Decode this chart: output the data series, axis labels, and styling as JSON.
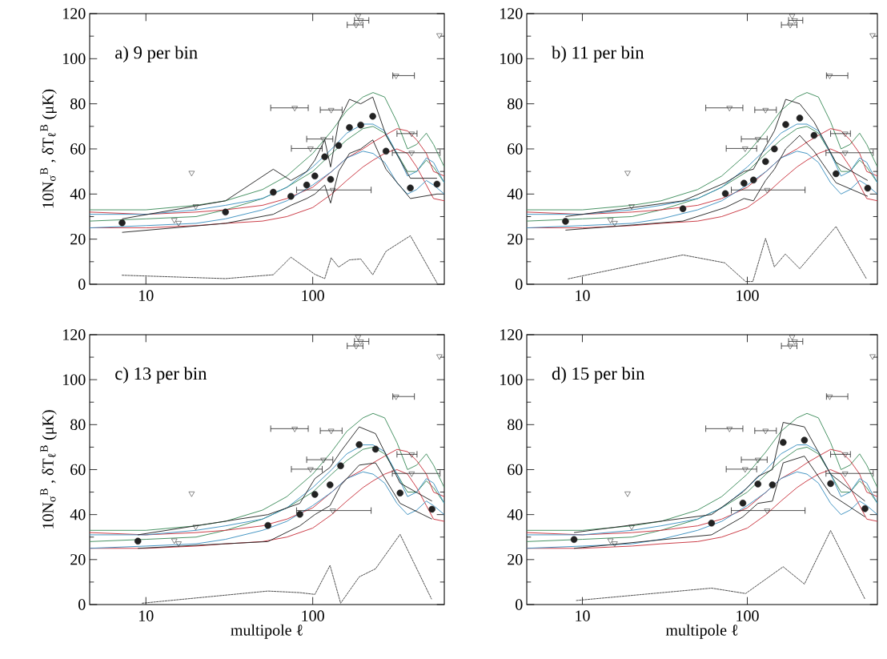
{
  "chart_data": [
    {
      "type": "line",
      "title": "a) 9 per bin",
      "ylabel": "10N$_{σ}$$^{B}$ ,  δT$_{ℓ}$$^{B}$ (μK)",
      "log": "x",
      "xlim": [
        4.6,
        615
      ],
      "ylim": [
        0,
        120
      ],
      "xticks": [
        10,
        100
      ],
      "yticks": [
        0,
        20,
        40,
        60,
        80,
        100,
        120
      ],
      "series": [
        {
          "color": "#3c8c5a",
          "x": [
            4.6,
            10,
            20,
            30,
            50,
            70,
            100,
            130,
            160,
            200,
            230,
            270,
            320,
            370,
            420,
            480,
            530,
            615
          ],
          "values": [
            33,
            33,
            35,
            37,
            42,
            48,
            58,
            68,
            77,
            83,
            85,
            83,
            72,
            60,
            62,
            67,
            62,
            52
          ]
        },
        {
          "color": "#3c8c5a",
          "x": [
            4.6,
            10,
            20,
            30,
            50,
            70,
            100,
            130,
            160,
            200,
            230,
            270,
            320,
            370,
            420,
            480,
            530,
            615
          ],
          "values": [
            28,
            29,
            30,
            33,
            38,
            43,
            50,
            58,
            64,
            69,
            70,
            67,
            58,
            50,
            50,
            55,
            52,
            45
          ]
        },
        {
          "color": "#c8323c",
          "x": [
            4.6,
            10,
            20,
            30,
            50,
            70,
            100,
            130,
            160,
            200,
            230,
            270,
            320,
            370,
            420,
            480,
            530,
            615
          ],
          "values": [
            32,
            31,
            32,
            33,
            35,
            38,
            43,
            50,
            56,
            60,
            63,
            66,
            69,
            68,
            64,
            58,
            50,
            48
          ]
        },
        {
          "color": "#c8323c",
          "x": [
            4.6,
            10,
            20,
            30,
            50,
            70,
            100,
            130,
            160,
            200,
            230,
            270,
            320,
            370,
            420,
            480,
            530,
            615
          ],
          "values": [
            25,
            25,
            26,
            27,
            28,
            30,
            34,
            40,
            46,
            52,
            55,
            58,
            60,
            58,
            52,
            44,
            38,
            37
          ]
        },
        {
          "color": "#3a8fc0",
          "x": [
            4.6,
            10,
            20,
            30,
            50,
            70,
            100,
            130,
            160,
            200,
            230,
            270,
            320,
            370,
            420,
            480,
            530,
            615
          ],
          "values": [
            31,
            31,
            33,
            35,
            38,
            43,
            52,
            60,
            67,
            71,
            71,
            68,
            58,
            48,
            50,
            56,
            54,
            45
          ]
        },
        {
          "color": "#3a8fc0",
          "x": [
            4.6,
            10,
            20,
            30,
            50,
            70,
            100,
            130,
            160,
            200,
            230,
            270,
            320,
            370,
            420,
            480,
            530,
            615
          ],
          "values": [
            25,
            26,
            27,
            29,
            33,
            37,
            44,
            50,
            56,
            59,
            58,
            54,
            45,
            40,
            42,
            46,
            44,
            40
          ]
        },
        {
          "type": "scatter",
          "marker": "circle",
          "color": "#222222",
          "x": [
            7.2,
            30,
            58,
            74,
            92,
            103,
            118,
            128,
            143,
            166,
            194,
            229,
            275,
            385,
            556
          ],
          "values": [
            27.2,
            32,
            40.8,
            39,
            44,
            48,
            56.5,
            46.5,
            61.5,
            69.5,
            70.6,
            74.5,
            59,
            42.7,
            44.4
          ]
        },
        {
          "color": "#222222",
          "x": [
            7.2,
            30,
            58,
            74,
            92,
            103,
            118,
            128,
            143,
            166,
            194,
            229,
            275,
            385,
            556
          ],
          "values": [
            29,
            37,
            51,
            46,
            50,
            55,
            64,
            52,
            72,
            82,
            80,
            83,
            66,
            47,
            47
          ]
        },
        {
          "color": "#222222",
          "x": [
            7.2,
            30,
            58,
            74,
            92,
            103,
            118,
            128,
            143,
            166,
            194,
            229,
            275,
            385,
            556
          ],
          "values": [
            23,
            27,
            31,
            35,
            38,
            40,
            44,
            36,
            50,
            58,
            60,
            64,
            51,
            38,
            40
          ]
        },
        {
          "type": "scatter",
          "marker": "triangle",
          "color": "#222222",
          "x": [
            14.8,
            15.7,
            18.8,
            19.9,
            78,
            97,
            116,
            129,
            132,
            182,
            187,
            194,
            316,
            392,
            392,
            575
          ],
          "values": [
            28.5,
            27.2,
            49.4,
            34.6,
            78.2,
            60.2,
            64.4,
            77.3,
            41.8,
            115,
            119,
            117,
            92.5,
            58.3,
            66.8,
            110.4
          ],
          "xerrors": [
            null,
            null,
            null,
            null,
            [
              56,
              94
            ],
            [
              74.5,
              114
            ],
            [
              92,
              132
            ],
            [
              111,
              150
            ],
            [
              80,
              224
            ],
            [
              161,
              200
            ],
            null,
            [
              178,
              217
            ],
            [
              302,
              407
            ],
            [
              300,
              580
            ],
            [
              320,
              422
            ],
            null
          ]
        },
        {
          "line_style": "dashed",
          "color": "#222222",
          "x": [
            7.2,
            30,
            58,
            74,
            103,
            118,
            129,
            143,
            166,
            194,
            229,
            275,
            385,
            556
          ],
          "values": [
            4,
            2.5,
            4.2,
            12,
            4.4,
            2.5,
            11.7,
            7.6,
            10.8,
            11.2,
            4.2,
            14.6,
            21.5,
            0.6
          ]
        }
      ]
    },
    {
      "type": "line",
      "title": "b) 11 per bin",
      "log": "x",
      "xlim": [
        4.6,
        615
      ],
      "ylim": [
        0,
        120
      ],
      "xticks": [
        10,
        100
      ],
      "yticks": [
        0,
        20,
        40,
        60,
        80,
        100,
        120
      ],
      "series": [
        {
          "color": "#3c8c5a",
          "x": [
            4.6,
            10,
            20,
            30,
            50,
            70,
            100,
            130,
            160,
            200,
            230,
            270,
            320,
            370,
            420,
            480,
            530,
            615
          ],
          "values": [
            33,
            33,
            35,
            37,
            42,
            48,
            58,
            68,
            77,
            83,
            85,
            83,
            72,
            60,
            62,
            67,
            62,
            52
          ]
        },
        {
          "color": "#3c8c5a",
          "x": [
            4.6,
            10,
            20,
            30,
            50,
            70,
            100,
            130,
            160,
            200,
            230,
            270,
            320,
            370,
            420,
            480,
            530,
            615
          ],
          "values": [
            28,
            29,
            30,
            33,
            38,
            43,
            50,
            58,
            64,
            69,
            70,
            67,
            58,
            50,
            50,
            55,
            52,
            45
          ]
        },
        {
          "color": "#c8323c",
          "x": [
            4.6,
            10,
            20,
            30,
            50,
            70,
            100,
            130,
            160,
            200,
            230,
            270,
            320,
            370,
            420,
            480,
            530,
            615
          ],
          "values": [
            32,
            31,
            32,
            33,
            35,
            38,
            43,
            50,
            56,
            60,
            63,
            66,
            69,
            68,
            64,
            58,
            50,
            48
          ]
        },
        {
          "color": "#c8323c",
          "x": [
            4.6,
            10,
            20,
            30,
            50,
            70,
            100,
            130,
            160,
            200,
            230,
            270,
            320,
            370,
            420,
            480,
            530,
            615
          ],
          "values": [
            25,
            25,
            26,
            27,
            28,
            30,
            34,
            40,
            46,
            52,
            55,
            58,
            60,
            58,
            52,
            44,
            38,
            37
          ]
        },
        {
          "color": "#3a8fc0",
          "x": [
            4.6,
            10,
            20,
            30,
            50,
            70,
            100,
            130,
            160,
            200,
            230,
            270,
            320,
            370,
            420,
            480,
            530,
            615
          ],
          "values": [
            31,
            31,
            33,
            35,
            38,
            43,
            52,
            60,
            67,
            71,
            71,
            68,
            58,
            48,
            50,
            56,
            54,
            45
          ]
        },
        {
          "color": "#3a8fc0",
          "x": [
            4.6,
            10,
            20,
            30,
            50,
            70,
            100,
            130,
            160,
            200,
            230,
            270,
            320,
            370,
            420,
            480,
            530,
            615
          ],
          "values": [
            25,
            26,
            27,
            29,
            33,
            37,
            44,
            50,
            56,
            59,
            58,
            54,
            45,
            40,
            42,
            46,
            44,
            40
          ]
        },
        {
          "type": "scatter",
          "marker": "circle",
          "color": "#222222",
          "x": [
            7.9,
            40.7,
            73.6,
            95.5,
            109,
            129,
            146,
            171,
            208,
            254,
            345,
            537
          ],
          "values": [
            27.9,
            33.5,
            40.2,
            44.8,
            46.2,
            54.4,
            60,
            70.8,
            73.7,
            66,
            49,
            42.6
          ]
        },
        {
          "color": "#222222",
          "x": [
            7.9,
            40.7,
            73.6,
            95.5,
            109,
            129,
            146,
            171,
            208,
            254,
            345,
            537
          ],
          "values": [
            30,
            37,
            45,
            50,
            51,
            61,
            68,
            82,
            80,
            72,
            54,
            46
          ]
        },
        {
          "color": "#222222",
          "x": [
            7.9,
            40.7,
            73.6,
            95.5,
            109,
            129,
            146,
            171,
            208,
            254,
            345,
            537
          ],
          "values": [
            24,
            28,
            34,
            38,
            37,
            46,
            51,
            60,
            66,
            59,
            45,
            39
          ]
        },
        {
          "type": "scatter",
          "marker": "triangle",
          "color": "#222222",
          "x": [
            14.8,
            15.7,
            18.8,
            19.9,
            78,
            97,
            116,
            129,
            132,
            182,
            187,
            194,
            316,
            392,
            392,
            575
          ],
          "values": [
            28.5,
            27.2,
            49.4,
            34.6,
            78.2,
            60.2,
            64.4,
            77.3,
            41.8,
            115,
            119,
            117,
            92.5,
            58.3,
            66.8,
            110.4
          ],
          "xerrors": [
            null,
            null,
            null,
            null,
            [
              56,
              94
            ],
            [
              74.5,
              114
            ],
            [
              92,
              132
            ],
            [
              111,
              150
            ],
            [
              80,
              224
            ],
            [
              161,
              200
            ],
            null,
            [
              178,
              217
            ],
            [
              302,
              407
            ],
            [
              300,
              580
            ],
            [
              320,
              422
            ],
            null
          ]
        },
        {
          "line_style": "dashed",
          "color": "#222222",
          "x": [
            8.2,
            40.7,
            73,
            97.7,
            108,
            129,
            146,
            170,
            208,
            345,
            528
          ],
          "values": [
            2.4,
            13,
            9.5,
            1.2,
            1.2,
            20.3,
            7.7,
            13.4,
            6.9,
            25.6,
            2.4
          ]
        }
      ]
    },
    {
      "type": "line",
      "title": "c) 13 per bin",
      "xlabel": "multipole ℓ",
      "ylabel": "10N$_{σ}$$^{B}$ ,  δT$_{ℓ}$$^{B}$ (μK)",
      "log": "x",
      "xlim": [
        4.6,
        615
      ],
      "ylim": [
        0,
        120
      ],
      "xticks": [
        10,
        100
      ],
      "yticks": [
        0,
        20,
        40,
        60,
        80,
        100,
        120
      ],
      "series": [
        {
          "color": "#3c8c5a",
          "x": [
            4.6,
            10,
            20,
            30,
            50,
            70,
            100,
            130,
            160,
            200,
            230,
            270,
            320,
            370,
            420,
            480,
            530,
            615
          ],
          "values": [
            33,
            33,
            35,
            37,
            42,
            48,
            58,
            68,
            77,
            83,
            85,
            83,
            72,
            60,
            62,
            67,
            62,
            52
          ]
        },
        {
          "color": "#3c8c5a",
          "x": [
            4.6,
            10,
            20,
            30,
            50,
            70,
            100,
            130,
            160,
            200,
            230,
            270,
            320,
            370,
            420,
            480,
            530,
            615
          ],
          "values": [
            28,
            29,
            30,
            33,
            38,
            43,
            50,
            58,
            64,
            69,
            70,
            67,
            58,
            50,
            50,
            55,
            52,
            45
          ]
        },
        {
          "color": "#c8323c",
          "x": [
            4.6,
            10,
            20,
            30,
            50,
            70,
            100,
            130,
            160,
            200,
            230,
            270,
            320,
            370,
            420,
            480,
            530,
            615
          ],
          "values": [
            32,
            31,
            32,
            33,
            35,
            38,
            43,
            50,
            56,
            60,
            63,
            66,
            69,
            68,
            64,
            58,
            50,
            48
          ]
        },
        {
          "color": "#c8323c",
          "x": [
            4.6,
            10,
            20,
            30,
            50,
            70,
            100,
            130,
            160,
            200,
            230,
            270,
            320,
            370,
            420,
            480,
            530,
            615
          ],
          "values": [
            25,
            25,
            26,
            27,
            28,
            30,
            34,
            40,
            46,
            52,
            55,
            58,
            60,
            58,
            52,
            44,
            38,
            37
          ]
        },
        {
          "color": "#3a8fc0",
          "x": [
            4.6,
            10,
            20,
            30,
            50,
            70,
            100,
            130,
            160,
            200,
            230,
            270,
            320,
            370,
            420,
            480,
            530,
            615
          ],
          "values": [
            31,
            31,
            33,
            35,
            38,
            43,
            52,
            60,
            67,
            71,
            71,
            68,
            58,
            48,
            50,
            56,
            54,
            45
          ]
        },
        {
          "color": "#3a8fc0",
          "x": [
            4.6,
            10,
            20,
            30,
            50,
            70,
            100,
            130,
            160,
            200,
            230,
            270,
            320,
            370,
            420,
            480,
            530,
            615
          ],
          "values": [
            25,
            26,
            27,
            29,
            33,
            37,
            44,
            50,
            56,
            59,
            58,
            54,
            45,
            40,
            42,
            46,
            44,
            40
          ]
        },
        {
          "type": "scatter",
          "marker": "circle",
          "color": "#222222",
          "x": [
            8.95,
            53.9,
            83.7,
            103,
            127,
            147,
            190,
            238,
            334,
            519
          ],
          "values": [
            28.2,
            35.2,
            40.1,
            49,
            53.2,
            61.7,
            71.1,
            69.1,
            49.6,
            42.4
          ]
        },
        {
          "color": "#222222",
          "x": [
            8.95,
            53.9,
            83.7,
            103,
            127,
            147,
            190,
            238,
            334,
            519
          ],
          "values": [
            31,
            40,
            45,
            56,
            61,
            68,
            79,
            76,
            54,
            46
          ]
        },
        {
          "color": "#222222",
          "x": [
            8.95,
            53.9,
            83.7,
            103,
            127,
            147,
            190,
            238,
            334,
            519
          ],
          "values": [
            25,
            28,
            35,
            40,
            44,
            53,
            62,
            63,
            45,
            38
          ]
        },
        {
          "type": "scatter",
          "marker": "triangle",
          "color": "#222222",
          "x": [
            14.8,
            15.7,
            18.8,
            19.9,
            78,
            97,
            116,
            129,
            132,
            182,
            187,
            194,
            316,
            392,
            392,
            575
          ],
          "values": [
            28.5,
            27.2,
            49.4,
            34.6,
            78.2,
            60.2,
            64.4,
            77.3,
            41.8,
            115,
            119,
            117,
            92.5,
            58.3,
            66.8,
            110.4
          ],
          "xerrors": [
            null,
            null,
            null,
            null,
            [
              56,
              94
            ],
            [
              74.5,
              114
            ],
            [
              92,
              132
            ],
            [
              111,
              150
            ],
            [
              80,
              224
            ],
            [
              161,
              200
            ],
            null,
            [
              178,
              217
            ],
            [
              302,
              407
            ],
            [
              300,
              580
            ],
            [
              320,
              422
            ],
            null
          ]
        },
        {
          "line_style": "dashed",
          "color": "#222222",
          "x": [
            9.5,
            53.9,
            83.7,
            103,
            127,
            147,
            190,
            238,
            334,
            515
          ],
          "values": [
            0.6,
            6,
            5.3,
            4.5,
            17.4,
            0.6,
            12.3,
            15.9,
            31.2,
            2.5
          ]
        }
      ]
    },
    {
      "type": "line",
      "title": "d) 15 per bin",
      "xlabel": "multipole ℓ",
      "log": "x",
      "xlim": [
        4.6,
        615
      ],
      "ylim": [
        0,
        120
      ],
      "xticks": [
        10,
        100
      ],
      "yticks": [
        0,
        20,
        40,
        60,
        80,
        100,
        120
      ],
      "series": [
        {
          "color": "#3c8c5a",
          "x": [
            4.6,
            10,
            20,
            30,
            50,
            70,
            100,
            130,
            160,
            200,
            230,
            270,
            320,
            370,
            420,
            480,
            530,
            615
          ],
          "values": [
            33,
            33,
            35,
            37,
            42,
            48,
            58,
            68,
            77,
            83,
            85,
            83,
            72,
            60,
            62,
            67,
            62,
            52
          ]
        },
        {
          "color": "#3c8c5a",
          "x": [
            4.6,
            10,
            20,
            30,
            50,
            70,
            100,
            130,
            160,
            200,
            230,
            270,
            320,
            370,
            420,
            480,
            530,
            615
          ],
          "values": [
            28,
            29,
            30,
            33,
            38,
            43,
            50,
            58,
            64,
            69,
            70,
            67,
            58,
            50,
            50,
            55,
            52,
            45
          ]
        },
        {
          "color": "#c8323c",
          "x": [
            4.6,
            10,
            20,
            30,
            50,
            70,
            100,
            130,
            160,
            200,
            230,
            270,
            320,
            370,
            420,
            480,
            530,
            615
          ],
          "values": [
            32,
            31,
            32,
            33,
            35,
            38,
            43,
            50,
            56,
            60,
            63,
            66,
            69,
            68,
            64,
            58,
            50,
            48
          ]
        },
        {
          "color": "#c8323c",
          "x": [
            4.6,
            10,
            20,
            30,
            50,
            70,
            100,
            130,
            160,
            200,
            230,
            270,
            320,
            370,
            420,
            480,
            530,
            615
          ],
          "values": [
            25,
            25,
            26,
            27,
            28,
            30,
            34,
            40,
            46,
            52,
            55,
            58,
            60,
            58,
            52,
            44,
            38,
            37
          ]
        },
        {
          "color": "#3a8fc0",
          "x": [
            4.6,
            10,
            20,
            30,
            50,
            70,
            100,
            130,
            160,
            200,
            230,
            270,
            320,
            370,
            420,
            480,
            530,
            615
          ],
          "values": [
            31,
            31,
            33,
            35,
            38,
            43,
            52,
            60,
            67,
            71,
            71,
            68,
            58,
            48,
            50,
            56,
            54,
            45
          ]
        },
        {
          "color": "#3a8fc0",
          "x": [
            4.6,
            10,
            20,
            30,
            50,
            70,
            100,
            130,
            160,
            200,
            230,
            270,
            320,
            370,
            420,
            480,
            530,
            615
          ],
          "values": [
            25,
            26,
            27,
            29,
            33,
            37,
            44,
            50,
            56,
            59,
            58,
            54,
            45,
            40,
            42,
            46,
            44,
            40
          ]
        },
        {
          "type": "scatter",
          "marker": "circle",
          "color": "#222222",
          "x": [
            8.9,
            60.7,
            94,
            116,
            142,
            165,
            222,
            320,
            517
          ],
          "values": [
            28.9,
            36.2,
            45.1,
            53.6,
            53.2,
            72.1,
            73.1,
            53.8,
            42.6
          ]
        },
        {
          "color": "#222222",
          "x": [
            8.9,
            60.7,
            94,
            116,
            142,
            165,
            222,
            320,
            517
          ],
          "values": [
            32,
            40,
            50,
            57,
            60,
            81,
            79,
            58,
            46
          ]
        },
        {
          "color": "#222222",
          "x": [
            8.9,
            60.7,
            94,
            116,
            142,
            165,
            222,
            320,
            517
          ],
          "values": [
            25,
            31,
            39,
            45,
            46,
            63,
            66,
            49,
            39
          ]
        },
        {
          "type": "scatter",
          "marker": "triangle",
          "color": "#222222",
          "x": [
            14.8,
            15.7,
            18.8,
            19.9,
            78,
            97,
            116,
            129,
            132,
            182,
            187,
            194,
            316,
            392,
            392,
            575
          ],
          "values": [
            28.5,
            27.2,
            49.4,
            34.6,
            78.2,
            60.2,
            64.4,
            77.3,
            41.8,
            115,
            119,
            117,
            92.5,
            58.3,
            66.8,
            110.4
          ],
          "xerrors": [
            null,
            null,
            null,
            null,
            [
              56,
              94
            ],
            [
              74.5,
              114
            ],
            [
              92,
              132
            ],
            [
              111,
              150
            ],
            [
              80,
              224
            ],
            [
              161,
              200
            ],
            null,
            [
              178,
              217
            ],
            [
              302,
              407
            ],
            [
              300,
              580
            ],
            [
              320,
              422
            ],
            null
          ]
        },
        {
          "line_style": "dashed",
          "color": "#222222",
          "x": [
            9.2,
            60.7,
            97.7,
            165,
            222,
            320,
            517
          ],
          "values": [
            1.8,
            7.3,
            4.9,
            16.8,
            9.1,
            32.9,
            2.4
          ]
        }
      ]
    }
  ]
}
